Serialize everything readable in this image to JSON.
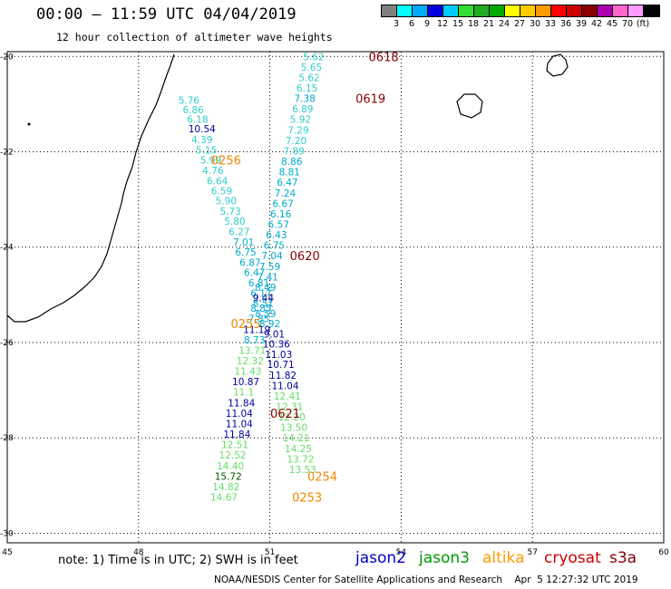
{
  "header": {
    "title": "00:00 – 11:59 UTC 04/04/2019",
    "subtitle": "12 hour collection of altimeter wave heights"
  },
  "legend": {
    "colors": [
      "#808080",
      "#00ffff",
      "#00aaff",
      "#0000dd",
      "#00ccff",
      "#33dd33",
      "#22aa22",
      "#00aa00",
      "#ffff00",
      "#ffcc00",
      "#ff9900",
      "#ff0000",
      "#cc0000",
      "#880000",
      "#aa00aa",
      "#ff66cc",
      "#ff99ff",
      "#000000"
    ],
    "labels": [
      "3",
      "6",
      "9",
      "12",
      "15",
      "18",
      "21",
      "24",
      "27",
      "30",
      "33",
      "36",
      "39",
      "42",
      "45",
      "70",
      "(ft)"
    ]
  },
  "axes": {
    "lon_ticks": [
      "45",
      "48",
      "51",
      "54",
      "57",
      "60"
    ],
    "lat_ticks": [
      "-20",
      "-22",
      "-24",
      "-26",
      "-28",
      "-30"
    ]
  },
  "chart_data": {
    "type": "scatter",
    "xlim": [
      45,
      60
    ],
    "ylim": [
      -30.2,
      -19.9
    ],
    "grid": true,
    "units": "ft",
    "points": [
      {
        "lon": 49.15,
        "lat": -20.92,
        "v": "5.76",
        "c": "#33cccc"
      },
      {
        "lon": 49.25,
        "lat": -21.12,
        "v": "6.86",
        "c": "#33cccc"
      },
      {
        "lon": 49.35,
        "lat": -21.32,
        "v": "6.18",
        "c": "#33cccc"
      },
      {
        "lon": 49.45,
        "lat": -21.52,
        "v": "10.54",
        "c": "#000099"
      },
      {
        "lon": 49.45,
        "lat": -21.74,
        "v": "4.39",
        "c": "#33cccc"
      },
      {
        "lon": 49.55,
        "lat": -21.96,
        "v": "5.15",
        "c": "#33cccc"
      },
      {
        "lon": 49.65,
        "lat": -22.17,
        "v": "5.99",
        "c": "#33cccc"
      },
      {
        "lon": 49.7,
        "lat": -22.39,
        "v": "4.76",
        "c": "#33cccc"
      },
      {
        "lon": 49.8,
        "lat": -22.61,
        "v": "6.64",
        "c": "#33cccc"
      },
      {
        "lon": 49.9,
        "lat": -22.82,
        "v": "6.59",
        "c": "#33cccc"
      },
      {
        "lon": 50.0,
        "lat": -23.03,
        "v": "5.90",
        "c": "#33cccc"
      },
      {
        "lon": 50.1,
        "lat": -23.24,
        "v": "5.73",
        "c": "#33cccc"
      },
      {
        "lon": 50.2,
        "lat": -23.45,
        "v": "5.80",
        "c": "#33cccc"
      },
      {
        "lon": 50.3,
        "lat": -23.67,
        "v": "6.27",
        "c": "#33cccc"
      },
      {
        "lon": 50.4,
        "lat": -23.89,
        "v": "7.01",
        "c": "#00aacc"
      },
      {
        "lon": 50.45,
        "lat": -24.1,
        "v": "6.75",
        "c": "#00aacc"
      },
      {
        "lon": 50.55,
        "lat": -24.32,
        "v": "6.87",
        "c": "#00aacc"
      },
      {
        "lon": 50.65,
        "lat": -24.53,
        "v": "6.47",
        "c": "#00aacc"
      },
      {
        "lon": 50.75,
        "lat": -24.75,
        "v": "6.81",
        "c": "#00aacc"
      },
      {
        "lon": 50.8,
        "lat": -24.96,
        "v": "6.17",
        "c": "#00aacc"
      },
      {
        "lon": 50.85,
        "lat": -25.17,
        "v": "8.51",
        "c": "#00aacc"
      },
      {
        "lon": 50.9,
        "lat": -25.39,
        "v": "8.59",
        "c": "#00aacc"
      },
      {
        "lon": 51.0,
        "lat": -25.6,
        "v": "8.92",
        "c": "#00aacc"
      },
      {
        "lon": 51.1,
        "lat": -25.82,
        "v": "9.01",
        "c": "#000099"
      },
      {
        "lon": 51.15,
        "lat": -26.03,
        "v": "10.36",
        "c": "#000099"
      },
      {
        "lon": 51.2,
        "lat": -26.25,
        "v": "11.03",
        "c": "#000099"
      },
      {
        "lon": 51.25,
        "lat": -26.46,
        "v": "10.71",
        "c": "#000099"
      },
      {
        "lon": 51.3,
        "lat": -26.68,
        "v": "11.82",
        "c": "#000099"
      },
      {
        "lon": 51.35,
        "lat": -26.9,
        "v": "11.04",
        "c": "#000099"
      },
      {
        "lon": 51.4,
        "lat": -27.12,
        "v": "12.41",
        "c": "#66dd66"
      },
      {
        "lon": 51.45,
        "lat": -27.34,
        "v": "12.31",
        "c": "#66dd66"
      },
      {
        "lon": 51.5,
        "lat": -27.56,
        "v": "12.20",
        "c": "#66dd66"
      },
      {
        "lon": 51.55,
        "lat": -27.78,
        "v": "13.50",
        "c": "#66dd66"
      },
      {
        "lon": 51.6,
        "lat": -28.0,
        "v": "14.21",
        "c": "#66dd66"
      },
      {
        "lon": 51.65,
        "lat": -28.22,
        "v": "14.25",
        "c": "#66dd66"
      },
      {
        "lon": 51.7,
        "lat": -28.44,
        "v": "13.72",
        "c": "#66dd66"
      },
      {
        "lon": 51.75,
        "lat": -28.66,
        "v": "13.53",
        "c": "#66dd66"
      },
      {
        "lon": 52.0,
        "lat": -20.0,
        "v": "5.62",
        "c": "#33cccc"
      },
      {
        "lon": 51.95,
        "lat": -20.22,
        "v": "5.65",
        "c": "#33cccc"
      },
      {
        "lon": 51.9,
        "lat": -20.44,
        "v": "5.62",
        "c": "#33cccc"
      },
      {
        "lon": 51.85,
        "lat": -20.66,
        "v": "6.15",
        "c": "#33cccc"
      },
      {
        "lon": 51.8,
        "lat": -20.88,
        "v": "7.38",
        "c": "#00aacc"
      },
      {
        "lon": 51.75,
        "lat": -21.1,
        "v": "6.89",
        "c": "#33cccc"
      },
      {
        "lon": 51.7,
        "lat": -21.32,
        "v": "5.92",
        "c": "#33cccc"
      },
      {
        "lon": 51.65,
        "lat": -21.54,
        "v": "7.29",
        "c": "#33cccc"
      },
      {
        "lon": 51.6,
        "lat": -21.76,
        "v": "7.20",
        "c": "#33cccc"
      },
      {
        "lon": 51.55,
        "lat": -21.98,
        "v": "7.89",
        "c": "#33cccc"
      },
      {
        "lon": 51.5,
        "lat": -22.2,
        "v": "8.86",
        "c": "#00aacc"
      },
      {
        "lon": 51.45,
        "lat": -22.42,
        "v": "8.81",
        "c": "#00aacc"
      },
      {
        "lon": 51.4,
        "lat": -22.64,
        "v": "6.47",
        "c": "#00aacc"
      },
      {
        "lon": 51.35,
        "lat": -22.86,
        "v": "7.24",
        "c": "#00aacc"
      },
      {
        "lon": 51.3,
        "lat": -23.08,
        "v": "6.67",
        "c": "#00aacc"
      },
      {
        "lon": 51.25,
        "lat": -23.3,
        "v": "6.16",
        "c": "#00aacc"
      },
      {
        "lon": 51.2,
        "lat": -23.52,
        "v": "6.57",
        "c": "#00aacc"
      },
      {
        "lon": 51.15,
        "lat": -23.74,
        "v": "6.43",
        "c": "#00aacc"
      },
      {
        "lon": 51.1,
        "lat": -23.96,
        "v": "6.75",
        "c": "#00aacc"
      },
      {
        "lon": 51.05,
        "lat": -24.18,
        "v": "7.04",
        "c": "#00aacc"
      },
      {
        "lon": 51.0,
        "lat": -24.4,
        "v": "7.59",
        "c": "#00aacc"
      },
      {
        "lon": 50.95,
        "lat": -24.62,
        "v": "7.41",
        "c": "#00aacc"
      },
      {
        "lon": 50.9,
        "lat": -24.84,
        "v": "8.49",
        "c": "#00aacc"
      },
      {
        "lon": 50.85,
        "lat": -25.06,
        "v": "9.44",
        "c": "#000099"
      },
      {
        "lon": 50.8,
        "lat": -25.28,
        "v": "8.85",
        "c": "#00aacc"
      },
      {
        "lon": 50.75,
        "lat": -25.5,
        "v": "7.85",
        "c": "#00aacc"
      },
      {
        "lon": 50.7,
        "lat": -25.72,
        "v": "11.19",
        "c": "#000099"
      },
      {
        "lon": 50.65,
        "lat": -25.94,
        "v": "8.73",
        "c": "#00aacc"
      },
      {
        "lon": 50.6,
        "lat": -26.16,
        "v": "13.71",
        "c": "#66dd66"
      },
      {
        "lon": 50.55,
        "lat": -26.38,
        "v": "12.32",
        "c": "#66dd66"
      },
      {
        "lon": 50.5,
        "lat": -26.6,
        "v": "11.43",
        "c": "#66dd66"
      },
      {
        "lon": 50.45,
        "lat": -26.82,
        "v": "10.87",
        "c": "#000099"
      },
      {
        "lon": 50.4,
        "lat": -27.04,
        "v": "11.1",
        "c": "#66dd66"
      },
      {
        "lon": 50.35,
        "lat": -27.26,
        "v": "11.84",
        "c": "#000099"
      },
      {
        "lon": 50.3,
        "lat": -27.48,
        "v": "11.04",
        "c": "#000099"
      },
      {
        "lon": 50.3,
        "lat": -27.7,
        "v": "11.04",
        "c": "#000099"
      },
      {
        "lon": 50.25,
        "lat": -27.92,
        "v": "11.84",
        "c": "#000099"
      },
      {
        "lon": 50.2,
        "lat": -28.14,
        "v": "12.51",
        "c": "#66dd66"
      },
      {
        "lon": 50.15,
        "lat": -28.36,
        "v": "12.52",
        "c": "#66dd66"
      },
      {
        "lon": 50.1,
        "lat": -28.58,
        "v": "14.40",
        "c": "#66dd66"
      },
      {
        "lon": 50.05,
        "lat": -28.8,
        "v": "15.72",
        "c": "#005500"
      },
      {
        "lon": 50.0,
        "lat": -29.02,
        "v": "14.82",
        "c": "#66dd66"
      },
      {
        "lon": 49.95,
        "lat": -29.24,
        "v": "14.67",
        "c": "#66dd66"
      }
    ],
    "time_labels": [
      {
        "lon": 53.6,
        "lat": -20.0,
        "t": "0618",
        "c": "#880000"
      },
      {
        "lon": 53.3,
        "lat": -20.88,
        "t": "0619",
        "c": "#880000"
      },
      {
        "lon": 50.0,
        "lat": -22.17,
        "t": "0256",
        "c": "#ee8800"
      },
      {
        "lon": 51.8,
        "lat": -24.18,
        "t": "0620",
        "c": "#880000"
      },
      {
        "lon": 50.45,
        "lat": -25.6,
        "t": "0255",
        "c": "#ee8800"
      },
      {
        "lon": 51.35,
        "lat": -27.48,
        "t": "0621",
        "c": "#880000"
      },
      {
        "lon": 52.2,
        "lat": -28.8,
        "t": "0254",
        "c": "#ee8800"
      },
      {
        "lon": 51.85,
        "lat": -29.24,
        "t": "0253",
        "c": "#ee8800"
      }
    ]
  },
  "footer": {
    "note": "note: 1) Time is in UTC; 2) SWH is in feet",
    "satellites": [
      {
        "name": "jason2",
        "color": "#0000cc"
      },
      {
        "name": "jason3",
        "color": "#009900"
      },
      {
        "name": "altika",
        "color": "#ff9900"
      },
      {
        "name": "cryosat",
        "color": "#cc0000"
      },
      {
        "name": "s3a",
        "color": "#880000"
      }
    ],
    "credit": "NOAA/NESDIS Center for Satellite Applications and Research    Apr  5 12:27:32 UTC 2019"
  }
}
